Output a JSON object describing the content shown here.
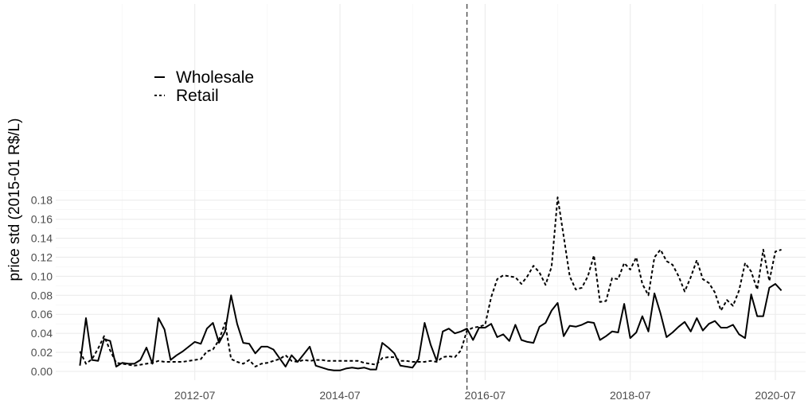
{
  "chart_data": {
    "type": "line",
    "title": "",
    "xlabel": "",
    "ylabel": "price std (2015-01 R$/L)",
    "ylim": [
      0,
      0.185
    ],
    "y_ticks": [
      0.0,
      0.02,
      0.04,
      0.06,
      0.08,
      0.1,
      0.12,
      0.14,
      0.16,
      0.18
    ],
    "y_tick_labels": [
      "0.00",
      "0.02",
      "0.04",
      "0.06",
      "0.08",
      "0.10",
      "0.12",
      "0.14",
      "0.16",
      "0.18"
    ],
    "x_range": [
      "2010-08",
      "2020-12"
    ],
    "x_ticks": [
      "2012-07",
      "2014-07",
      "2016-07",
      "2018-07",
      "2020-07"
    ],
    "x_tick_labels": [
      "2012-07",
      "2014-07",
      "2016-07",
      "2018-07",
      "2020-07"
    ],
    "vline": {
      "x": "2016-04",
      "style": "dashed",
      "color": "#555555"
    },
    "grid": true,
    "legend": {
      "position": "top-left"
    },
    "series": [
      {
        "name": "Wholesale",
        "dash": "solid",
        "color": "#000000",
        "points": [
          [
            "2010-12",
            0.006
          ],
          [
            "2011-01",
            0.056
          ],
          [
            "2011-02",
            0.012
          ],
          [
            "2011-03",
            0.011
          ],
          [
            "2011-04",
            0.034
          ],
          [
            "2011-05",
            0.032
          ],
          [
            "2011-06",
            0.005
          ],
          [
            "2011-07",
            0.009
          ],
          [
            "2011-08",
            0.008
          ],
          [
            "2011-09",
            0.008
          ],
          [
            "2011-10",
            0.012
          ],
          [
            "2011-11",
            0.025
          ],
          [
            "2011-12",
            0.008
          ],
          [
            "2012-01",
            0.056
          ],
          [
            "2012-02",
            0.044
          ],
          [
            "2012-03",
            0.012
          ],
          [
            "2012-04",
            0.017
          ],
          [
            "2012-05",
            0.021
          ],
          [
            "2012-06",
            0.026
          ],
          [
            "2012-07",
            0.031
          ],
          [
            "2012-08",
            0.029
          ],
          [
            "2012-09",
            0.045
          ],
          [
            "2012-10",
            0.051
          ],
          [
            "2012-11",
            0.03
          ],
          [
            "2012-12",
            0.042
          ],
          [
            "2013-01",
            0.08
          ],
          [
            "2013-02",
            0.05
          ],
          [
            "2013-03",
            0.03
          ],
          [
            "2013-04",
            0.029
          ],
          [
            "2013-05",
            0.019
          ],
          [
            "2013-06",
            0.026
          ],
          [
            "2013-07",
            0.026
          ],
          [
            "2013-08",
            0.023
          ],
          [
            "2013-09",
            0.014
          ],
          [
            "2013-10",
            0.005
          ],
          [
            "2013-11",
            0.017
          ],
          [
            "2013-12",
            0.01
          ],
          [
            "2014-01",
            0.018
          ],
          [
            "2014-02",
            0.026
          ],
          [
            "2014-03",
            0.006
          ],
          [
            "2014-04",
            0.004
          ],
          [
            "2014-05",
            0.002
          ],
          [
            "2014-06",
            0.001
          ],
          [
            "2014-07",
            0.001
          ],
          [
            "2014-08",
            0.003
          ],
          [
            "2014-09",
            0.004
          ],
          [
            "2014-10",
            0.003
          ],
          [
            "2014-11",
            0.004
          ],
          [
            "2014-12",
            0.002
          ],
          [
            "2015-01",
            0.002
          ],
          [
            "2015-02",
            0.03
          ],
          [
            "2015-03",
            0.025
          ],
          [
            "2015-04",
            0.019
          ],
          [
            "2015-05",
            0.006
          ],
          [
            "2015-06",
            0.005
          ],
          [
            "2015-07",
            0.004
          ],
          [
            "2015-08",
            0.013
          ],
          [
            "2015-09",
            0.051
          ],
          [
            "2015-10",
            0.028
          ],
          [
            "2015-11",
            0.011
          ],
          [
            "2015-12",
            0.042
          ],
          [
            "2016-01",
            0.045
          ],
          [
            "2016-02",
            0.04
          ],
          [
            "2016-03",
            0.042
          ],
          [
            "2016-04",
            0.045
          ],
          [
            "2016-05",
            0.033
          ],
          [
            "2016-06",
            0.046
          ],
          [
            "2016-07",
            0.046
          ],
          [
            "2016-08",
            0.05
          ],
          [
            "2016-09",
            0.036
          ],
          [
            "2016-10",
            0.039
          ],
          [
            "2016-11",
            0.032
          ],
          [
            "2016-12",
            0.049
          ],
          [
            "2017-01",
            0.033
          ],
          [
            "2017-02",
            0.031
          ],
          [
            "2017-03",
            0.03
          ],
          [
            "2017-04",
            0.047
          ],
          [
            "2017-05",
            0.051
          ],
          [
            "2017-06",
            0.064
          ],
          [
            "2017-07",
            0.072
          ],
          [
            "2017-08",
            0.037
          ],
          [
            "2017-09",
            0.048
          ],
          [
            "2017-10",
            0.047
          ],
          [
            "2017-11",
            0.049
          ],
          [
            "2017-12",
            0.052
          ],
          [
            "2018-01",
            0.051
          ],
          [
            "2018-02",
            0.033
          ],
          [
            "2018-03",
            0.037
          ],
          [
            "2018-04",
            0.042
          ],
          [
            "2018-05",
            0.041
          ],
          [
            "2018-06",
            0.071
          ],
          [
            "2018-07",
            0.035
          ],
          [
            "2018-08",
            0.041
          ],
          [
            "2018-09",
            0.058
          ],
          [
            "2018-10",
            0.042
          ],
          [
            "2018-11",
            0.082
          ],
          [
            "2018-12",
            0.061
          ],
          [
            "2019-01",
            0.036
          ],
          [
            "2019-02",
            0.041
          ],
          [
            "2019-03",
            0.047
          ],
          [
            "2019-04",
            0.052
          ],
          [
            "2019-05",
            0.042
          ],
          [
            "2019-06",
            0.056
          ],
          [
            "2019-07",
            0.043
          ],
          [
            "2019-08",
            0.05
          ],
          [
            "2019-09",
            0.053
          ],
          [
            "2019-10",
            0.046
          ],
          [
            "2019-11",
            0.046
          ],
          [
            "2019-12",
            0.049
          ],
          [
            "2020-01",
            0.039
          ],
          [
            "2020-02",
            0.035
          ],
          [
            "2020-03",
            0.081
          ],
          [
            "2020-04",
            0.058
          ],
          [
            "2020-05",
            0.058
          ],
          [
            "2020-06",
            0.088
          ],
          [
            "2020-07",
            0.092
          ],
          [
            "2020-08",
            0.085
          ]
        ]
      },
      {
        "name": "Retail",
        "dash": "dashed",
        "color": "#000000",
        "points": [
          [
            "2010-12",
            0.021
          ],
          [
            "2011-01",
            0.008
          ],
          [
            "2011-02",
            0.013
          ],
          [
            "2011-03",
            0.024
          ],
          [
            "2011-04",
            0.037
          ],
          [
            "2011-05",
            0.022
          ],
          [
            "2011-06",
            0.009
          ],
          [
            "2011-07",
            0.008
          ],
          [
            "2011-08",
            0.007
          ],
          [
            "2011-09",
            0.006
          ],
          [
            "2011-10",
            0.007
          ],
          [
            "2011-11",
            0.008
          ],
          [
            "2011-12",
            0.009
          ],
          [
            "2012-01",
            0.011
          ],
          [
            "2012-02",
            0.01
          ],
          [
            "2012-03",
            0.01
          ],
          [
            "2012-04",
            0.01
          ],
          [
            "2012-05",
            0.01
          ],
          [
            "2012-06",
            0.011
          ],
          [
            "2012-07",
            0.012
          ],
          [
            "2012-08",
            0.013
          ],
          [
            "2012-09",
            0.021
          ],
          [
            "2012-10",
            0.023
          ],
          [
            "2012-11",
            0.033
          ],
          [
            "2012-12",
            0.051
          ],
          [
            "2013-01",
            0.013
          ],
          [
            "2013-02",
            0.01
          ],
          [
            "2013-03",
            0.008
          ],
          [
            "2013-04",
            0.012
          ],
          [
            "2013-05",
            0.005
          ],
          [
            "2013-06",
            0.008
          ],
          [
            "2013-07",
            0.009
          ],
          [
            "2013-08",
            0.011
          ],
          [
            "2013-09",
            0.013
          ],
          [
            "2013-10",
            0.017
          ],
          [
            "2013-11",
            0.011
          ],
          [
            "2013-12",
            0.01
          ],
          [
            "2014-01",
            0.012
          ],
          [
            "2014-02",
            0.011
          ],
          [
            "2014-03",
            0.012
          ],
          [
            "2014-04",
            0.012
          ],
          [
            "2014-05",
            0.011
          ],
          [
            "2014-06",
            0.011
          ],
          [
            "2014-07",
            0.011
          ],
          [
            "2014-08",
            0.011
          ],
          [
            "2014-09",
            0.011
          ],
          [
            "2014-10",
            0.011
          ],
          [
            "2014-11",
            0.009
          ],
          [
            "2014-12",
            0.008
          ],
          [
            "2015-01",
            0.007
          ],
          [
            "2015-02",
            0.014
          ],
          [
            "2015-03",
            0.015
          ],
          [
            "2015-04",
            0.015
          ],
          [
            "2015-05",
            0.011
          ],
          [
            "2015-06",
            0.011
          ],
          [
            "2015-07",
            0.01
          ],
          [
            "2015-08",
            0.01
          ],
          [
            "2015-09",
            0.01
          ],
          [
            "2015-10",
            0.011
          ],
          [
            "2015-11",
            0.01
          ],
          [
            "2015-12",
            0.015
          ],
          [
            "2016-01",
            0.016
          ],
          [
            "2016-02",
            0.015
          ],
          [
            "2016-03",
            0.022
          ],
          [
            "2016-04",
            0.043
          ],
          [
            "2016-05",
            0.046
          ],
          [
            "2016-06",
            0.047
          ],
          [
            "2016-07",
            0.049
          ],
          [
            "2016-08",
            0.078
          ],
          [
            "2016-09",
            0.097
          ],
          [
            "2016-10",
            0.101
          ],
          [
            "2016-11",
            0.1
          ],
          [
            "2016-12",
            0.099
          ],
          [
            "2017-01",
            0.092
          ],
          [
            "2017-02",
            0.1
          ],
          [
            "2017-03",
            0.111
          ],
          [
            "2017-04",
            0.104
          ],
          [
            "2017-05",
            0.091
          ],
          [
            "2017-06",
            0.11
          ],
          [
            "2017-07",
            0.183
          ],
          [
            "2017-08",
            0.142
          ],
          [
            "2017-09",
            0.1
          ],
          [
            "2017-10",
            0.086
          ],
          [
            "2017-11",
            0.088
          ],
          [
            "2017-12",
            0.1
          ],
          [
            "2018-01",
            0.122
          ],
          [
            "2018-02",
            0.073
          ],
          [
            "2018-03",
            0.074
          ],
          [
            "2018-04",
            0.098
          ],
          [
            "2018-05",
            0.097
          ],
          [
            "2018-06",
            0.114
          ],
          [
            "2018-07",
            0.107
          ],
          [
            "2018-08",
            0.12
          ],
          [
            "2018-09",
            0.092
          ],
          [
            "2018-10",
            0.08
          ],
          [
            "2018-11",
            0.12
          ],
          [
            "2018-12",
            0.128
          ],
          [
            "2019-01",
            0.116
          ],
          [
            "2019-02",
            0.112
          ],
          [
            "2019-03",
            0.1
          ],
          [
            "2019-04",
            0.084
          ],
          [
            "2019-05",
            0.099
          ],
          [
            "2019-06",
            0.117
          ],
          [
            "2019-07",
            0.097
          ],
          [
            "2019-08",
            0.093
          ],
          [
            "2019-09",
            0.083
          ],
          [
            "2019-10",
            0.064
          ],
          [
            "2019-11",
            0.075
          ],
          [
            "2019-12",
            0.069
          ],
          [
            "2020-01",
            0.085
          ],
          [
            "2020-02",
            0.114
          ],
          [
            "2020-03",
            0.105
          ],
          [
            "2020-04",
            0.086
          ],
          [
            "2020-05",
            0.128
          ],
          [
            "2020-06",
            0.095
          ],
          [
            "2020-07",
            0.126
          ],
          [
            "2020-08",
            0.128
          ]
        ]
      }
    ]
  }
}
